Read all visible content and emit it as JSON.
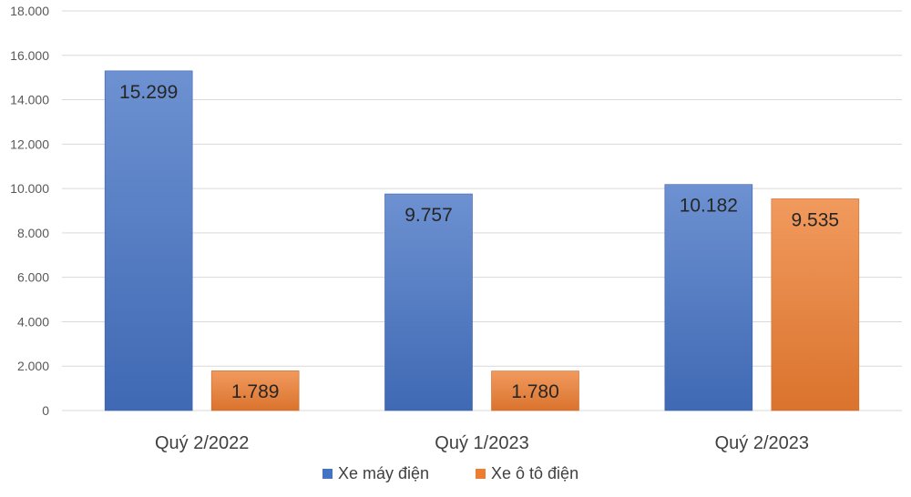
{
  "chart_data": {
    "type": "bar",
    "title": "",
    "xlabel": "",
    "ylabel": "",
    "categories": [
      "Quý 2/2022",
      "Quý 1/2023",
      "Quý 2/2023"
    ],
    "series": [
      {
        "name": "Xe máy điện",
        "values": [
          15299,
          9757,
          10182
        ],
        "labels": [
          "15.299",
          "9.757",
          "10.182"
        ],
        "color": "#4472C4"
      },
      {
        "name": "Xe ô tô điện",
        "values": [
          1789,
          1780,
          9535
        ],
        "labels": [
          "1.789",
          "1.780",
          "9.535"
        ],
        "color": "#ED7D31"
      }
    ],
    "ylim": [
      0,
      18000
    ],
    "yticks": [
      0,
      2000,
      4000,
      6000,
      8000,
      10000,
      12000,
      14000,
      16000,
      18000
    ],
    "ytick_labels": [
      "0",
      "2.000",
      "4.000",
      "6.000",
      "8.000",
      "10.000",
      "12.000",
      "14.000",
      "16.000",
      "18.000"
    ],
    "grid": true,
    "legend": "bottom"
  }
}
